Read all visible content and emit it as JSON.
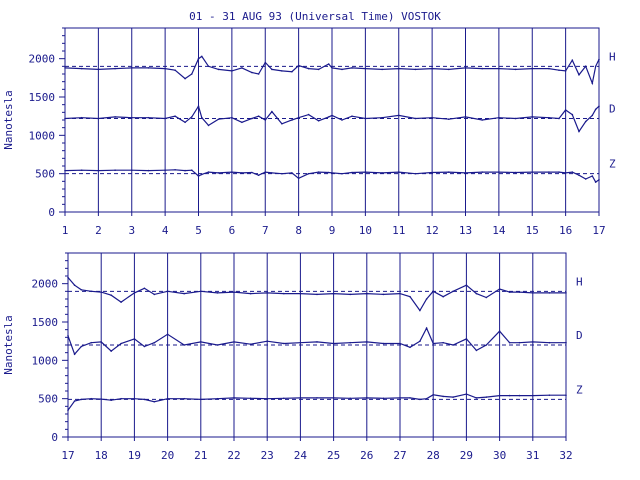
{
  "chart_data": [
    {
      "type": "line",
      "title": "01 - 31 AUG 93 (Universal Time) VOSTOK",
      "ylabel": "Nanotesla",
      "xlabel": "",
      "xlim": [
        1,
        17
      ],
      "ylim": [
        0,
        2400
      ],
      "x_ticks": [
        "1",
        "2",
        "3",
        "4",
        "5",
        "6",
        "7",
        "8",
        "9",
        "10",
        "11",
        "12",
        "13",
        "14",
        "15",
        "16",
        "17"
      ],
      "y_ticks": [
        "0",
        "500",
        "1000",
        "1500",
        "2000"
      ],
      "y_tick_values": [
        0,
        500,
        1000,
        1500,
        2000
      ],
      "grid": "vertical",
      "series": [
        {
          "name": "H",
          "baseline": 1900,
          "x": [
            1,
            1.5,
            2,
            2.5,
            3,
            3.5,
            4,
            4.3,
            4.6,
            4.8,
            5,
            5.1,
            5.3,
            5.6,
            6,
            6.3,
            6.6,
            6.8,
            7,
            7.2,
            7.5,
            7.8,
            8,
            8.3,
            8.6,
            8.9,
            9,
            9.3,
            9.6,
            10,
            10.5,
            11,
            11.5,
            12,
            12.5,
            13,
            13.5,
            14,
            14.5,
            15,
            15.5,
            15.8,
            16,
            16.2,
            16.4,
            16.6,
            16.8,
            16.9,
            17
          ],
          "values": [
            1880,
            1870,
            1860,
            1870,
            1880,
            1880,
            1870,
            1850,
            1740,
            1800,
            2000,
            2030,
            1900,
            1860,
            1840,
            1880,
            1820,
            1800,
            1950,
            1860,
            1840,
            1830,
            1910,
            1870,
            1860,
            1930,
            1880,
            1860,
            1880,
            1870,
            1860,
            1870,
            1860,
            1870,
            1860,
            1880,
            1870,
            1870,
            1860,
            1870,
            1870,
            1850,
            1840,
            1980,
            1790,
            1900,
            1680,
            1900,
            1990
          ]
        },
        {
          "name": "D",
          "baseline": 1220,
          "x": [
            1,
            1.5,
            2,
            2.5,
            3,
            3.5,
            4,
            4.3,
            4.6,
            4.8,
            5,
            5.1,
            5.3,
            5.6,
            6,
            6.3,
            6.6,
            6.8,
            7,
            7.2,
            7.5,
            7.8,
            8,
            8.3,
            8.6,
            8.9,
            9,
            9.3,
            9.6,
            10,
            10.5,
            11,
            11.5,
            12,
            12.5,
            13,
            13.5,
            14,
            14.5,
            15,
            15.5,
            15.8,
            16,
            16.2,
            16.4,
            16.6,
            16.8,
            16.9,
            17
          ],
          "values": [
            1220,
            1230,
            1220,
            1240,
            1230,
            1230,
            1220,
            1250,
            1170,
            1240,
            1380,
            1230,
            1130,
            1210,
            1230,
            1170,
            1220,
            1250,
            1200,
            1310,
            1150,
            1200,
            1230,
            1270,
            1190,
            1240,
            1260,
            1200,
            1250,
            1220,
            1230,
            1260,
            1220,
            1230,
            1210,
            1240,
            1200,
            1230,
            1220,
            1240,
            1230,
            1220,
            1330,
            1270,
            1050,
            1180,
            1260,
            1340,
            1380
          ]
        },
        {
          "name": "Z",
          "baseline": 500,
          "x": [
            1,
            1.5,
            2,
            2.5,
            3,
            3.5,
            4,
            4.3,
            4.6,
            4.8,
            5,
            5.1,
            5.3,
            5.6,
            6,
            6.3,
            6.6,
            6.8,
            7,
            7.2,
            7.5,
            7.8,
            8,
            8.3,
            8.6,
            8.9,
            9,
            9.3,
            9.6,
            10,
            10.5,
            11,
            11.5,
            12,
            12.5,
            13,
            13.5,
            14,
            14.5,
            15,
            15.5,
            15.8,
            16,
            16.2,
            16.4,
            16.6,
            16.8,
            16.9,
            17
          ],
          "values": [
            540,
            545,
            540,
            545,
            545,
            540,
            545,
            550,
            540,
            545,
            470,
            490,
            520,
            510,
            520,
            510,
            515,
            480,
            520,
            510,
            500,
            510,
            440,
            500,
            520,
            515,
            510,
            500,
            515,
            520,
            510,
            520,
            500,
            515,
            520,
            510,
            520,
            520,
            515,
            520,
            520,
            520,
            510,
            520,
            480,
            430,
            470,
            390,
            420
          ]
        }
      ],
      "annotations": [
        {
          "text": "H"
        },
        {
          "text": "D"
        },
        {
          "text": "Z"
        }
      ]
    },
    {
      "type": "line",
      "title": "",
      "ylabel": "Nanotesla",
      "xlabel": "",
      "xlim": [
        17,
        32
      ],
      "ylim": [
        0,
        2400
      ],
      "x_ticks": [
        "17",
        "18",
        "19",
        "20",
        "21",
        "22",
        "23",
        "24",
        "25",
        "26",
        "27",
        "28",
        "29",
        "30",
        "31",
        "32"
      ],
      "y_ticks": [
        "0",
        "500",
        "1000",
        "1500",
        "2000"
      ],
      "y_tick_values": [
        0,
        500,
        1000,
        1500,
        2000
      ],
      "grid": "vertical",
      "series": [
        {
          "name": "H",
          "baseline": 1900,
          "x": [
            17,
            17.2,
            17.4,
            17.7,
            18,
            18.3,
            18.6,
            19,
            19.3,
            19.6,
            20,
            20.5,
            21,
            21.5,
            22,
            22.5,
            23,
            23.5,
            24,
            24.5,
            25,
            25.5,
            26,
            26.5,
            27,
            27.3,
            27.6,
            27.8,
            28,
            28.3,
            28.6,
            29,
            29.3,
            29.6,
            30,
            30.3,
            30.6,
            31,
            31.5,
            32
          ],
          "values": [
            2080,
            1980,
            1920,
            1900,
            1890,
            1850,
            1760,
            1880,
            1940,
            1860,
            1900,
            1870,
            1900,
            1880,
            1890,
            1870,
            1880,
            1870,
            1870,
            1860,
            1870,
            1860,
            1870,
            1860,
            1870,
            1830,
            1650,
            1800,
            1900,
            1830,
            1900,
            1980,
            1870,
            1820,
            1930,
            1890,
            1890,
            1880,
            1880,
            1880
          ]
        },
        {
          "name": "D",
          "baseline": 1200,
          "x": [
            17,
            17.2,
            17.4,
            17.7,
            18,
            18.3,
            18.6,
            19,
            19.3,
            19.6,
            20,
            20.5,
            21,
            21.5,
            22,
            22.5,
            23,
            23.5,
            24,
            24.5,
            25,
            25.5,
            26,
            26.5,
            27,
            27.3,
            27.6,
            27.8,
            28,
            28.3,
            28.6,
            29,
            29.3,
            29.6,
            30,
            30.3,
            30.6,
            31,
            31.5,
            32
          ],
          "values": [
            1320,
            1080,
            1180,
            1230,
            1240,
            1120,
            1220,
            1280,
            1180,
            1230,
            1340,
            1200,
            1240,
            1200,
            1240,
            1210,
            1250,
            1220,
            1230,
            1240,
            1220,
            1230,
            1240,
            1220,
            1220,
            1170,
            1250,
            1420,
            1220,
            1230,
            1200,
            1280,
            1130,
            1200,
            1380,
            1230,
            1230,
            1240,
            1230,
            1230
          ]
        },
        {
          "name": "Z",
          "baseline": 490,
          "x": [
            17,
            17.2,
            17.4,
            17.7,
            18,
            18.3,
            18.6,
            19,
            19.3,
            19.6,
            20,
            20.5,
            21,
            21.5,
            22,
            22.5,
            23,
            23.5,
            24,
            24.5,
            25,
            25.5,
            26,
            26.5,
            27,
            27.3,
            27.6,
            27.8,
            28,
            28.3,
            28.6,
            29,
            29.3,
            29.6,
            30,
            30.3,
            30.6,
            31,
            31.5,
            32
          ],
          "values": [
            350,
            470,
            490,
            500,
            495,
            480,
            500,
            500,
            490,
            460,
            500,
            500,
            490,
            500,
            510,
            505,
            500,
            505,
            510,
            510,
            510,
            505,
            510,
            505,
            510,
            510,
            490,
            500,
            550,
            530,
            520,
            560,
            510,
            520,
            540,
            540,
            540,
            540,
            545,
            545
          ]
        }
      ],
      "annotations": [
        {
          "text": "H"
        },
        {
          "text": "D"
        },
        {
          "text": "Z"
        }
      ]
    }
  ],
  "colors": {
    "axis": "#1a1a8c",
    "line": "#1a1a8c",
    "background": "#ffffff"
  }
}
